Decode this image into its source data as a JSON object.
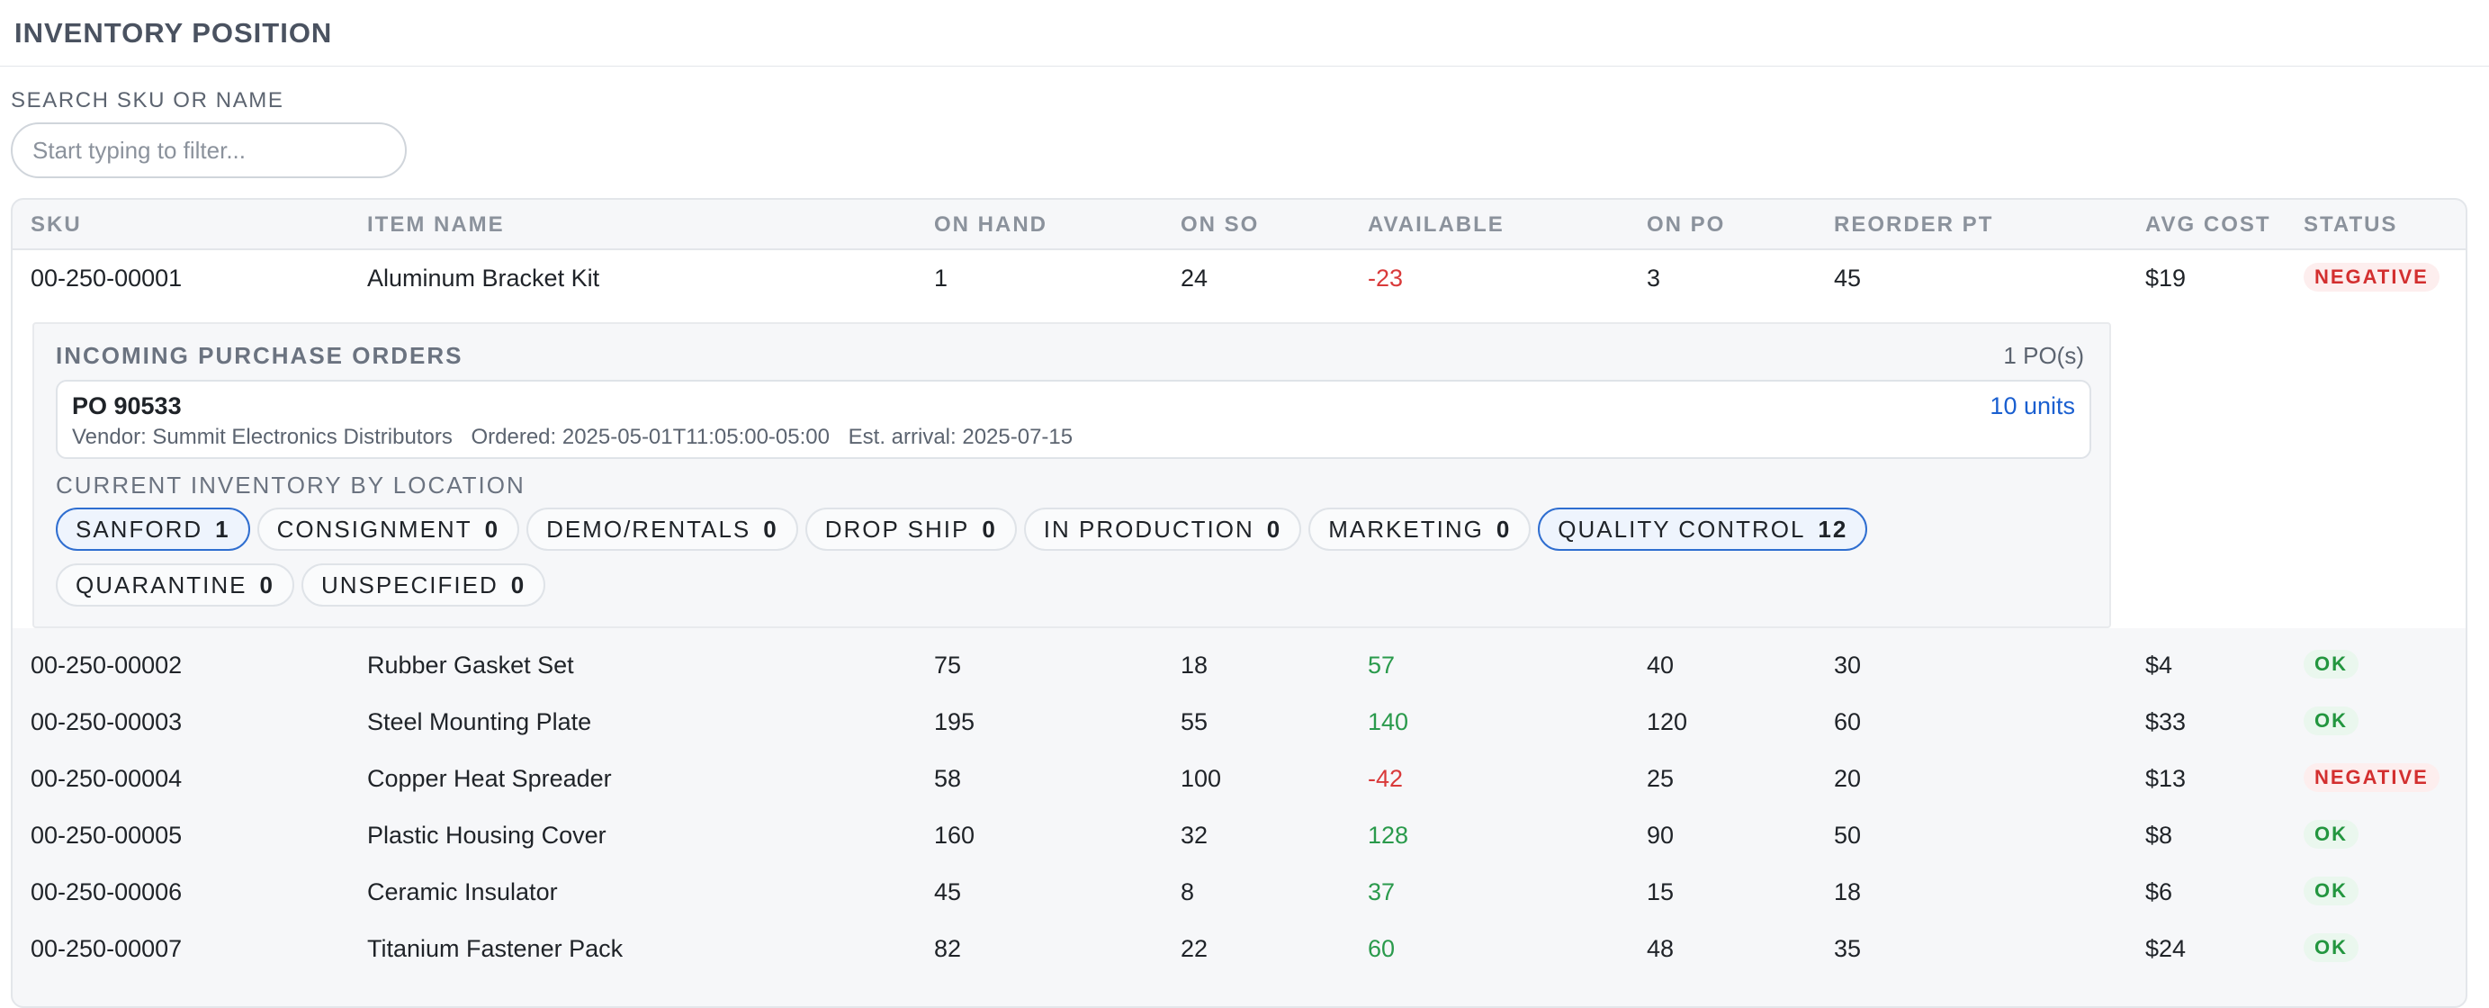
{
  "page": {
    "title": "INVENTORY POSITION"
  },
  "search": {
    "label": "SEARCH SKU OR NAME",
    "placeholder": "Start typing to filter...",
    "value": ""
  },
  "table": {
    "headers": [
      "SKU",
      "ITEM NAME",
      "ON HAND",
      "ON SO",
      "AVAILABLE",
      "ON PO",
      "REORDER PT",
      "AVG COST",
      "STATUS"
    ],
    "rows": [
      {
        "sku": "00-250-00001",
        "name": "Aluminum Bracket Kit",
        "on_hand": "1",
        "on_so": "24",
        "available": "-23",
        "on_po": "3",
        "reorder_pt": "45",
        "avg_cost": "$19",
        "status": "NEGATIVE"
      },
      {
        "sku": "00-250-00002",
        "name": "Rubber Gasket Set",
        "on_hand": "75",
        "on_so": "18",
        "available": "57",
        "on_po": "40",
        "reorder_pt": "30",
        "avg_cost": "$4",
        "status": "OK"
      },
      {
        "sku": "00-250-00003",
        "name": "Steel Mounting Plate",
        "on_hand": "195",
        "on_so": "55",
        "available": "140",
        "on_po": "120",
        "reorder_pt": "60",
        "avg_cost": "$33",
        "status": "OK"
      },
      {
        "sku": "00-250-00004",
        "name": "Copper Heat Spreader",
        "on_hand": "58",
        "on_so": "100",
        "available": "-42",
        "on_po": "25",
        "reorder_pt": "20",
        "avg_cost": "$13",
        "status": "NEGATIVE"
      },
      {
        "sku": "00-250-00005",
        "name": "Plastic Housing Cover",
        "on_hand": "160",
        "on_so": "32",
        "available": "128",
        "on_po": "90",
        "reorder_pt": "50",
        "avg_cost": "$8",
        "status": "OK"
      },
      {
        "sku": "00-250-00006",
        "name": "Ceramic Insulator",
        "on_hand": "45",
        "on_so": "8",
        "available": "37",
        "on_po": "15",
        "reorder_pt": "18",
        "avg_cost": "$6",
        "status": "OK"
      },
      {
        "sku": "00-250-00007",
        "name": "Titanium Fastener Pack",
        "on_hand": "82",
        "on_so": "22",
        "available": "60",
        "on_po": "48",
        "reorder_pt": "35",
        "avg_cost": "$24",
        "status": "OK"
      }
    ]
  },
  "detail": {
    "incoming_title": "INCOMING PURCHASE ORDERS",
    "po_count": "1 PO(s)",
    "po": {
      "number": "PO 90533",
      "units": "10 units",
      "vendor": "Vendor: Summit Electronics Distributors",
      "ordered": "Ordered: 2025-05-01T11:05:00-05:00",
      "arrival": "Est. arrival: 2025-07-15"
    },
    "location_title": "CURRENT INVENTORY BY LOCATION",
    "locations": [
      {
        "name": "SANFORD",
        "count": "1",
        "active": true
      },
      {
        "name": "CONSIGNMENT",
        "count": "0",
        "active": false
      },
      {
        "name": "DEMO/RENTALS",
        "count": "0",
        "active": false
      },
      {
        "name": "DROP SHIP",
        "count": "0",
        "active": false
      },
      {
        "name": "IN PRODUCTION",
        "count": "0",
        "active": false
      },
      {
        "name": "MARKETING",
        "count": "0",
        "active": false
      },
      {
        "name": "QUALITY CONTROL",
        "count": "12",
        "active": true
      },
      {
        "name": "QUARANTINE",
        "count": "0",
        "active": false
      },
      {
        "name": "UNSPECIFIED",
        "count": "0",
        "active": false
      }
    ]
  }
}
